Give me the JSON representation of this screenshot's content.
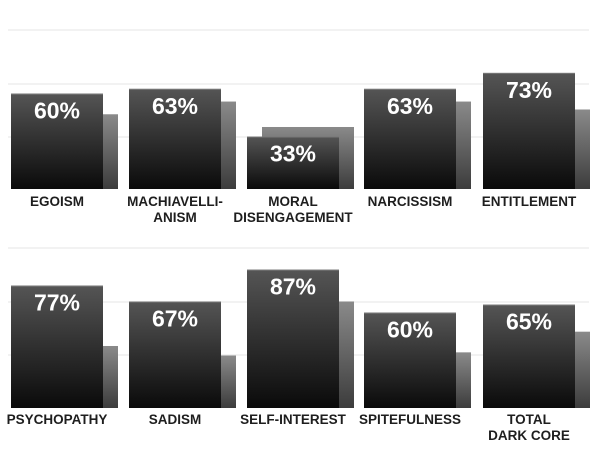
{
  "chart_data": [
    {
      "type": "bar",
      "title": "",
      "xlabel": "",
      "ylabel": "",
      "ylim": [
        0,
        100
      ],
      "grid": true,
      "categories": [
        [
          "EGOISM"
        ],
        [
          "MACHIAVELLI-",
          "ANISM"
        ],
        [
          "MORAL",
          "DISENGAGEMENT"
        ],
        [
          "NARCISSISM"
        ],
        [
          "ENTITLEMENT"
        ]
      ],
      "series": [
        {
          "values": [
            60,
            63,
            33,
            63,
            73
          ],
          "labels": [
            "60%",
            "63%",
            "33%",
            "63%",
            "73%"
          ]
        },
        {
          "values": [
            47,
            55,
            39,
            55,
            50
          ]
        }
      ]
    },
    {
      "type": "bar",
      "title": "",
      "xlabel": "",
      "ylabel": "",
      "ylim": [
        0,
        100
      ],
      "grid": true,
      "categories": [
        [
          "PSYCHOPATHY"
        ],
        [
          "SADISM"
        ],
        [
          "SELF-INTEREST"
        ],
        [
          "SPITEFULNESS"
        ],
        [
          "TOTAL",
          "DARK CORE"
        ]
      ],
      "series": [
        {
          "values": [
            77,
            67,
            87,
            60,
            65
          ],
          "labels": [
            "77%",
            "67%",
            "87%",
            "60%",
            "65%"
          ]
        },
        {
          "values": [
            39,
            33,
            67,
            35,
            48
          ]
        }
      ]
    }
  ],
  "colors": {
    "bar_front_top": "#555555",
    "bar_front_bottom": "#0a0a0a",
    "bar_back_top": "#8a8a8a",
    "bar_back_bottom": "#3c3c3c",
    "value_text": "#ffffff",
    "label_text": "#1e1e1e",
    "grid": "#e6e6e6"
  }
}
